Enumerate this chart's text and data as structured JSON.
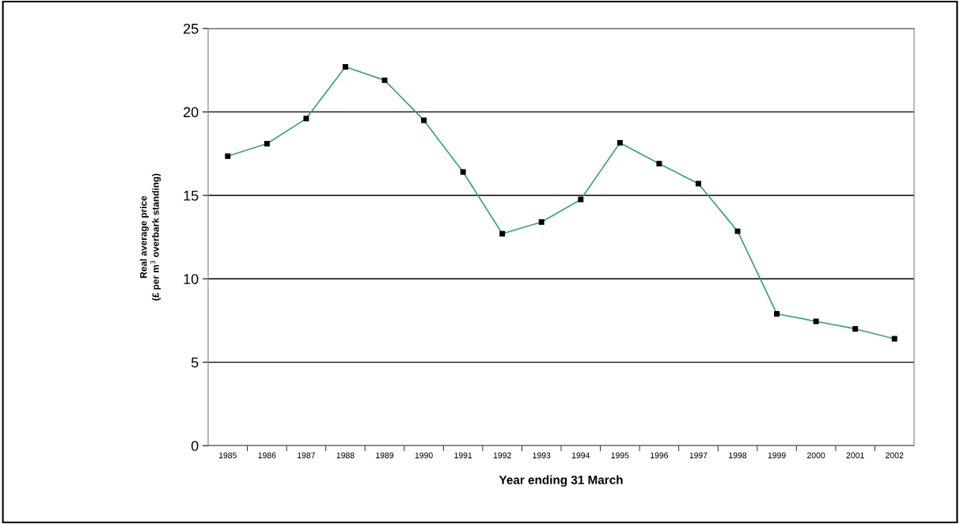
{
  "chart_data": {
    "type": "line",
    "xlabel": "Year ending 31 March",
    "ylabel": "Real average price\n(£ per m$^{3}$ overbark standing)",
    "categories": [
      "1985",
      "1986",
      "1987",
      "1988",
      "1989",
      "1990",
      "1991",
      "1992",
      "1993",
      "1994",
      "1995",
      "1996",
      "1997",
      "1998",
      "1999",
      "2000",
      "2001",
      "2002"
    ],
    "series": [
      {
        "color": "#3c9e80",
        "values": [
          17.35,
          18.1,
          19.6,
          22.7,
          21.9,
          19.5,
          16.4,
          12.7,
          13.4,
          14.75,
          18.15,
          16.9,
          15.7,
          12.85,
          7.9,
          7.45,
          7.0,
          6.4
        ]
      }
    ],
    "ylim": [
      0,
      25
    ],
    "yticks": [
      0,
      5,
      10,
      15,
      20,
      25
    ],
    "grid": "y",
    "marker": "square",
    "line_style": "solid"
  }
}
